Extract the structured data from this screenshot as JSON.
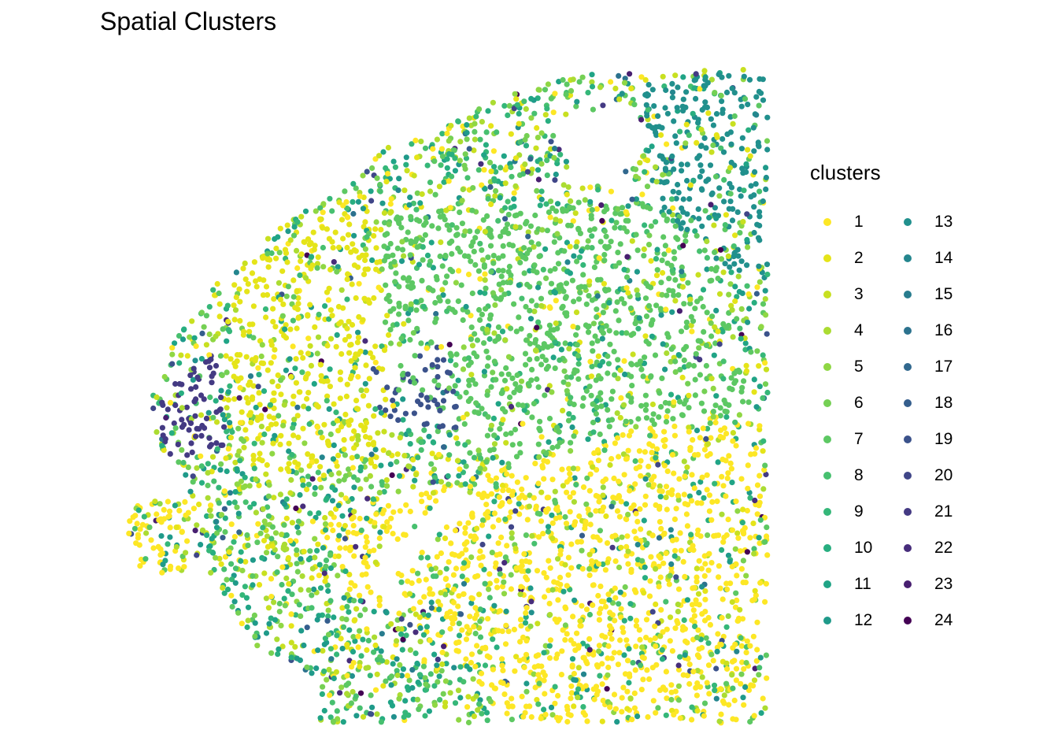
{
  "chart_data": {
    "type": "scatter",
    "title": "Spatial Clusters",
    "xlabel": "",
    "ylabel": "",
    "grid": false,
    "axes_visible": false,
    "legend": {
      "title": "clusters",
      "placement": "right",
      "entries": [
        {
          "label": "1",
          "color": "#FDE725"
        },
        {
          "label": "2",
          "color": "#E5E419"
        },
        {
          "label": "3",
          "color": "#C8E020"
        },
        {
          "label": "4",
          "color": "#ABDC32"
        },
        {
          "label": "5",
          "color": "#8FD744"
        },
        {
          "label": "6",
          "color": "#75D054"
        },
        {
          "label": "7",
          "color": "#5DC863"
        },
        {
          "label": "8",
          "color": "#47C06F"
        },
        {
          "label": "9",
          "color": "#35B779"
        },
        {
          "label": "10",
          "color": "#28AE80"
        },
        {
          "label": "11",
          "color": "#20A486"
        },
        {
          "label": "12",
          "color": "#1F9A8A"
        },
        {
          "label": "13",
          "color": "#21908D"
        },
        {
          "label": "14",
          "color": "#24868E"
        },
        {
          "label": "15",
          "color": "#287C8E"
        },
        {
          "label": "16",
          "color": "#2C728E"
        },
        {
          "label": "17",
          "color": "#31688E"
        },
        {
          "label": "18",
          "color": "#355E8D"
        },
        {
          "label": "19",
          "color": "#3B528B"
        },
        {
          "label": "20",
          "color": "#404688"
        },
        {
          "label": "21",
          "color": "#443A83"
        },
        {
          "label": "22",
          "color": "#472D7B"
        },
        {
          "label": "23",
          "color": "#481F70"
        },
        {
          "label": "24",
          "color": "#440154"
        }
      ]
    },
    "cluster_regions": [
      {
        "cluster": "13",
        "region": [
          [
            0.8,
            0.02
          ],
          [
            1.0,
            0.0
          ],
          [
            1.0,
            0.32
          ],
          [
            0.92,
            0.3
          ],
          [
            0.82,
            0.2
          ]
        ]
      },
      {
        "cluster": "1",
        "region": [
          [
            0.3,
            0.7
          ],
          [
            0.55,
            0.62
          ],
          [
            0.8,
            0.55
          ],
          [
            1.0,
            0.52
          ],
          [
            1.0,
            1.0
          ],
          [
            0.6,
            1.0
          ],
          [
            0.45,
            0.85
          ],
          [
            0.35,
            0.8
          ]
        ]
      },
      {
        "cluster": "19",
        "region": [
          [
            0.38,
            0.46
          ],
          [
            0.5,
            0.42
          ],
          [
            0.52,
            0.55
          ],
          [
            0.4,
            0.55
          ]
        ]
      },
      {
        "cluster": "21",
        "region": [
          [
            0.05,
            0.48
          ],
          [
            0.14,
            0.44
          ],
          [
            0.16,
            0.58
          ],
          [
            0.06,
            0.6
          ]
        ]
      },
      {
        "cluster": "7",
        "region": [
          [
            0.4,
            0.22
          ],
          [
            0.9,
            0.2
          ],
          [
            0.98,
            0.52
          ],
          [
            0.6,
            0.6
          ],
          [
            0.4,
            0.5
          ]
        ]
      },
      {
        "cluster": "2",
        "region": [
          [
            0.12,
            0.3
          ],
          [
            0.4,
            0.2
          ],
          [
            0.42,
            0.6
          ],
          [
            0.2,
            0.62
          ]
        ]
      },
      {
        "cluster": "1",
        "region": [
          [
            0.0,
            0.66
          ],
          [
            0.1,
            0.66
          ],
          [
            0.1,
            0.78
          ],
          [
            0.0,
            0.76
          ]
        ]
      }
    ]
  }
}
